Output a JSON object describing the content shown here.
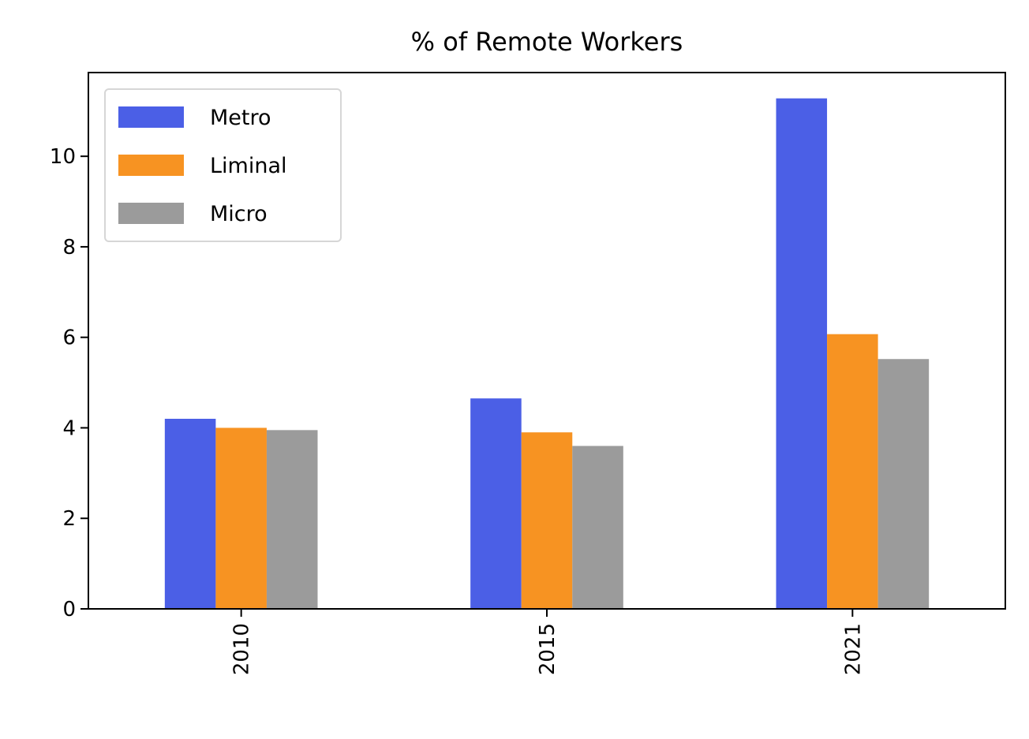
{
  "chart_data": {
    "type": "bar",
    "title": "% of Remote Workers",
    "xlabel": "",
    "ylabel": "",
    "categories": [
      "2010",
      "2015",
      "2021"
    ],
    "series": [
      {
        "name": "Metro",
        "color": "#4b5fe6",
        "values": [
          4.2,
          4.65,
          11.28
        ]
      },
      {
        "name": "Liminal",
        "color": "#f79322",
        "values": [
          4.0,
          3.9,
          6.07
        ]
      },
      {
        "name": "Micro",
        "color": "#9b9b9b",
        "values": [
          3.95,
          3.6,
          5.52
        ]
      }
    ],
    "yticks": [
      "0",
      "2",
      "4",
      "6",
      "8",
      "10"
    ],
    "ylim": [
      0,
      11.85
    ],
    "grid": false,
    "legend": "upper-left",
    "x_tick_rotation": "vertical"
  }
}
